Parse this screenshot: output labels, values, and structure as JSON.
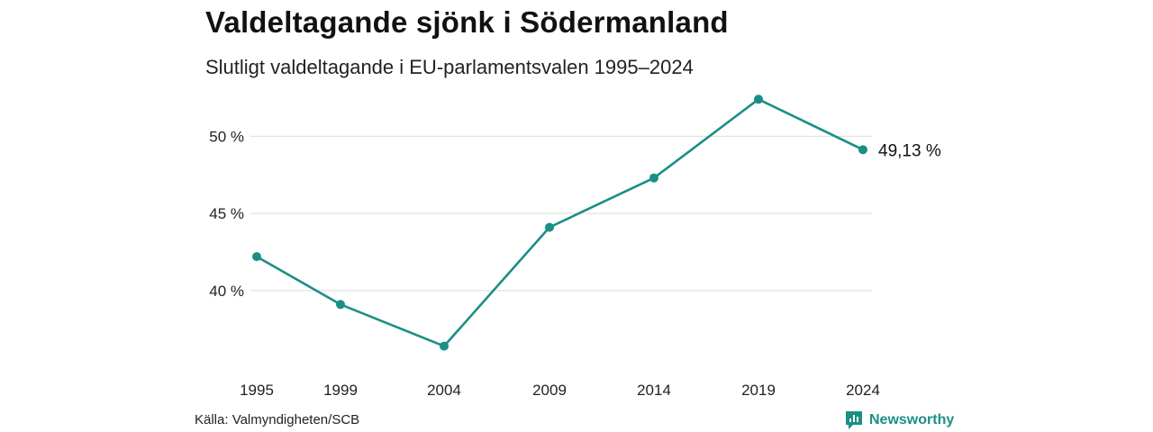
{
  "title": "Valdeltagande sjönk i Södermanland",
  "subtitle": "Slutligt valdeltagande i EU-parlamentsvalen 1995–2024",
  "source": "Källa: Valmyndigheten/SCB",
  "brand": {
    "name": "Newsworthy",
    "icon": "newsworthy-logo-icon",
    "color": "#1a8f85"
  },
  "chart_data": {
    "type": "line",
    "title": "Valdeltagande sjönk i Södermanland",
    "subtitle": "Slutligt valdeltagande i EU-parlamentsvalen 1995–2024",
    "xlabel": "",
    "ylabel": "",
    "x": [
      "1995",
      "1999",
      "2004",
      "2009",
      "2014",
      "2019",
      "2024"
    ],
    "series": [
      {
        "values": [
          42.2,
          39.1,
          36.4,
          44.1,
          47.3,
          52.4,
          49.13
        ],
        "color": "#1a8f85"
      }
    ],
    "y_ticks": [
      40,
      45,
      50
    ],
    "y_tick_labels": [
      "40 %",
      "45 %",
      "50 %"
    ],
    "ylim": [
      35.5,
      53.0
    ],
    "grid": true,
    "annotations": [
      {
        "x": "2024",
        "text": "49,13 %"
      }
    ]
  }
}
